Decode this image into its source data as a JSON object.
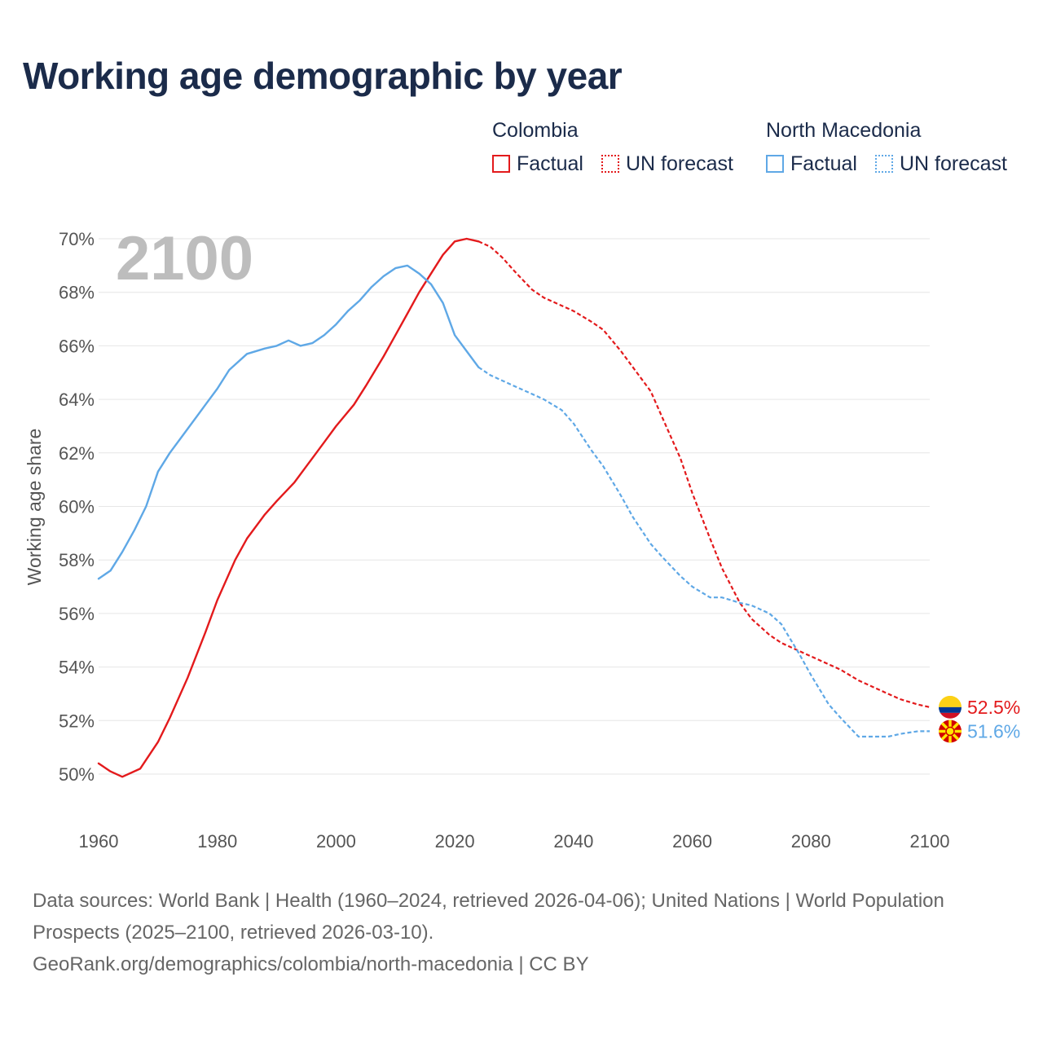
{
  "title": "Working age demographic by year",
  "legend": {
    "groups": [
      {
        "name": "Colombia",
        "factual_label": "Factual",
        "forecast_label": "UN forecast",
        "color": "#e31a1c"
      },
      {
        "name": "North Macedonia",
        "factual_label": "Factual",
        "forecast_label": "UN forecast",
        "color": "#5fa8e6"
      }
    ]
  },
  "chart_data": {
    "type": "line",
    "title": "Working age demographic by year",
    "xlabel": "",
    "ylabel": "Working age share",
    "xlim": [
      1960,
      2100
    ],
    "ylim": [
      50,
      70
    ],
    "x_ticks": [
      1960,
      1980,
      2000,
      2020,
      2040,
      2060,
      2080,
      2100
    ],
    "y_ticks": [
      50,
      52,
      54,
      56,
      58,
      60,
      62,
      64,
      66,
      68,
      70
    ],
    "y_tick_labels": [
      "50%",
      "52%",
      "54%",
      "56%",
      "58%",
      "60%",
      "62%",
      "64%",
      "66%",
      "68%",
      "70%"
    ],
    "current_year_label": "2100",
    "factual_end_year": 2024,
    "series": [
      {
        "name": "Colombia",
        "color": "#e31a1c",
        "end_label": "52.5%",
        "points": [
          [
            1960,
            50.4
          ],
          [
            1962,
            50.1
          ],
          [
            1964,
            49.9
          ],
          [
            1967,
            50.2
          ],
          [
            1970,
            51.2
          ],
          [
            1972,
            52.1
          ],
          [
            1975,
            53.6
          ],
          [
            1978,
            55.3
          ],
          [
            1980,
            56.5
          ],
          [
            1983,
            58.0
          ],
          [
            1985,
            58.8
          ],
          [
            1988,
            59.7
          ],
          [
            1990,
            60.2
          ],
          [
            1993,
            60.9
          ],
          [
            1995,
            61.5
          ],
          [
            1998,
            62.4
          ],
          [
            2000,
            63.0
          ],
          [
            2003,
            63.8
          ],
          [
            2005,
            64.5
          ],
          [
            2008,
            65.6
          ],
          [
            2010,
            66.4
          ],
          [
            2012,
            67.2
          ],
          [
            2014,
            68.0
          ],
          [
            2016,
            68.7
          ],
          [
            2018,
            69.4
          ],
          [
            2020,
            69.9
          ],
          [
            2022,
            70.0
          ],
          [
            2024,
            69.9
          ],
          [
            2026,
            69.7
          ],
          [
            2028,
            69.3
          ],
          [
            2030,
            68.8
          ],
          [
            2033,
            68.1
          ],
          [
            2035,
            67.8
          ],
          [
            2038,
            67.5
          ],
          [
            2040,
            67.3
          ],
          [
            2043,
            66.9
          ],
          [
            2045,
            66.6
          ],
          [
            2048,
            65.8
          ],
          [
            2050,
            65.2
          ],
          [
            2053,
            64.3
          ],
          [
            2055,
            63.3
          ],
          [
            2058,
            61.8
          ],
          [
            2060,
            60.5
          ],
          [
            2063,
            58.8
          ],
          [
            2065,
            57.7
          ],
          [
            2068,
            56.4
          ],
          [
            2070,
            55.8
          ],
          [
            2073,
            55.2
          ],
          [
            2075,
            54.9
          ],
          [
            2078,
            54.6
          ],
          [
            2080,
            54.4
          ],
          [
            2083,
            54.1
          ],
          [
            2085,
            53.9
          ],
          [
            2088,
            53.5
          ],
          [
            2090,
            53.3
          ],
          [
            2093,
            53.0
          ],
          [
            2095,
            52.8
          ],
          [
            2098,
            52.6
          ],
          [
            2100,
            52.5
          ]
        ]
      },
      {
        "name": "North Macedonia",
        "color": "#5fa8e6",
        "end_label": "51.6%",
        "points": [
          [
            1960,
            57.3
          ],
          [
            1962,
            57.6
          ],
          [
            1964,
            58.3
          ],
          [
            1966,
            59.1
          ],
          [
            1968,
            60.0
          ],
          [
            1970,
            61.3
          ],
          [
            1972,
            62.0
          ],
          [
            1974,
            62.6
          ],
          [
            1976,
            63.2
          ],
          [
            1978,
            63.8
          ],
          [
            1980,
            64.4
          ],
          [
            1982,
            65.1
          ],
          [
            1985,
            65.7
          ],
          [
            1988,
            65.9
          ],
          [
            1990,
            66.0
          ],
          [
            1992,
            66.2
          ],
          [
            1994,
            66.0
          ],
          [
            1996,
            66.1
          ],
          [
            1998,
            66.4
          ],
          [
            2000,
            66.8
          ],
          [
            2002,
            67.3
          ],
          [
            2004,
            67.7
          ],
          [
            2006,
            68.2
          ],
          [
            2008,
            68.6
          ],
          [
            2010,
            68.9
          ],
          [
            2012,
            69.0
          ],
          [
            2014,
            68.7
          ],
          [
            2016,
            68.3
          ],
          [
            2018,
            67.6
          ],
          [
            2020,
            66.4
          ],
          [
            2022,
            65.8
          ],
          [
            2024,
            65.2
          ],
          [
            2026,
            64.9
          ],
          [
            2028,
            64.7
          ],
          [
            2030,
            64.5
          ],
          [
            2033,
            64.2
          ],
          [
            2035,
            64.0
          ],
          [
            2038,
            63.6
          ],
          [
            2040,
            63.1
          ],
          [
            2043,
            62.1
          ],
          [
            2045,
            61.5
          ],
          [
            2048,
            60.4
          ],
          [
            2050,
            59.6
          ],
          [
            2053,
            58.6
          ],
          [
            2055,
            58.1
          ],
          [
            2058,
            57.4
          ],
          [
            2060,
            57.0
          ],
          [
            2063,
            56.6
          ],
          [
            2065,
            56.6
          ],
          [
            2068,
            56.4
          ],
          [
            2070,
            56.3
          ],
          [
            2073,
            56.0
          ],
          [
            2075,
            55.6
          ],
          [
            2078,
            54.5
          ],
          [
            2080,
            53.7
          ],
          [
            2083,
            52.6
          ],
          [
            2085,
            52.1
          ],
          [
            2088,
            51.4
          ],
          [
            2090,
            51.4
          ],
          [
            2093,
            51.4
          ],
          [
            2095,
            51.5
          ],
          [
            2098,
            51.6
          ],
          [
            2100,
            51.6
          ]
        ]
      }
    ]
  },
  "footer": {
    "sources": "Data sources: World Bank | Health (1960–2024, retrieved 2026-04-06); United Nations | World Population Prospects (2025–2100, retrieved 2026-03-10).",
    "credit": "GeoRank.org/demographics/colombia/north-macedonia | CC BY"
  }
}
